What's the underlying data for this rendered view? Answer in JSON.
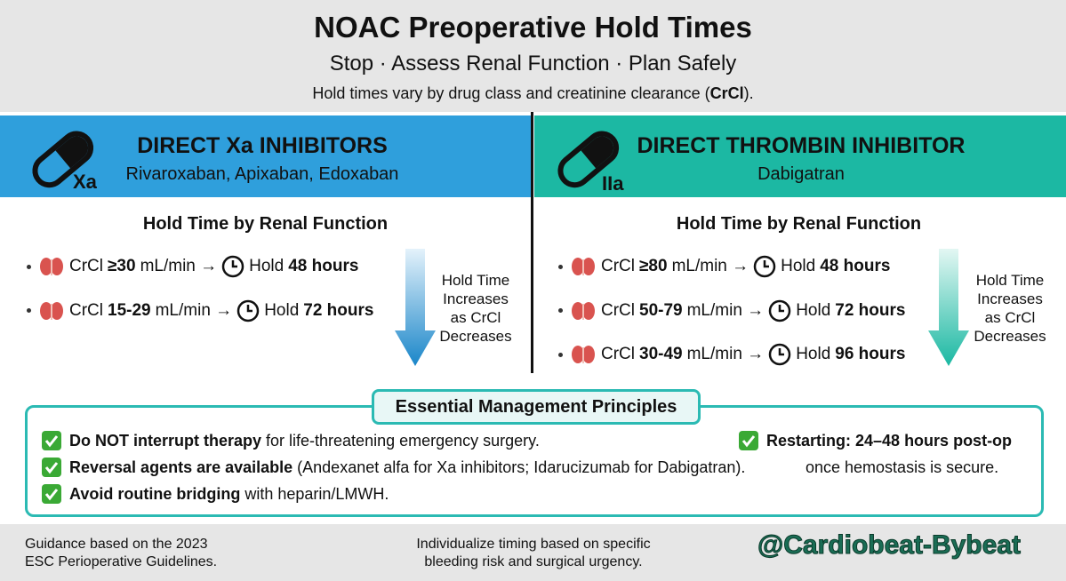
{
  "header": {
    "title": "NOAC Preoperative Hold Times",
    "subtitle": "Stop · Assess Renal Function · Plan Safely",
    "note": "Hold times vary by drug class and creatinine clearance (",
    "note_bold": "CrCl",
    "note_end": ")."
  },
  "panels": [
    {
      "icon_label": "Xa",
      "title": "DIRECT Xa INHIBITORS",
      "drugs": "Rivaroxaban, Apixaban, Edoxaban",
      "section_title": "Hold Time by Renal Function",
      "rows": [
        {
          "crcl": "CrCl",
          "range": "≥30",
          "unit": "mL/min →",
          "hold": "Hold",
          "duration": "48 hours"
        },
        {
          "crcl": "CrCl",
          "range": "15-29",
          "unit": "mL/min →",
          "hold": "Hold",
          "duration": "72 hours"
        }
      ],
      "trend": [
        "Hold Time",
        "Increases",
        "as CrCl",
        "Decreases"
      ]
    },
    {
      "icon_label": "IIa",
      "title": "DIRECT THROMBIN INHIBITOR",
      "drugs": "Dabigatran",
      "section_title": "Hold Time by Renal Function",
      "rows": [
        {
          "crcl": "CrCl",
          "range": "≥80",
          "unit": "mL/min →",
          "hold": "Hold",
          "duration": "48 hours"
        },
        {
          "crcl": "CrCl",
          "range": "50-79",
          "unit": "mL/min →",
          "hold": "Hold",
          "duration": "72 hours"
        },
        {
          "crcl": "CrCl",
          "range": "30-49",
          "unit": "mL/min →",
          "hold": "Hold",
          "duration": "96 hours"
        }
      ],
      "trend": [
        "Hold Time",
        "Increases",
        "as CrCl",
        "Decreases"
      ]
    }
  ],
  "principles": {
    "title": "Essential Management Principles",
    "items": [
      {
        "bold": "Do NOT interrupt therapy",
        "text": "for life-threatening emergency surgery."
      },
      {
        "bold": "Reversal agents are available",
        "text": "(Andexanet alfa for Xa inhibitors; Idarucizumab for Dabigatran)."
      },
      {
        "bold": "Avoid routine bridging",
        "text": "with heparin/LMWH."
      }
    ],
    "restart": {
      "bold": "Restarting: 24–48 hours post-op",
      "text": "once hemostasis is secure."
    }
  },
  "footer": {
    "left": [
      "Guidance based on the 2023",
      "ESC Perioperative Guidelines."
    ],
    "center": [
      "Individualize timing based on specific",
      "bleeding risk and surgical urgency."
    ],
    "handle": "@Cardiobeat-Bybeat"
  }
}
